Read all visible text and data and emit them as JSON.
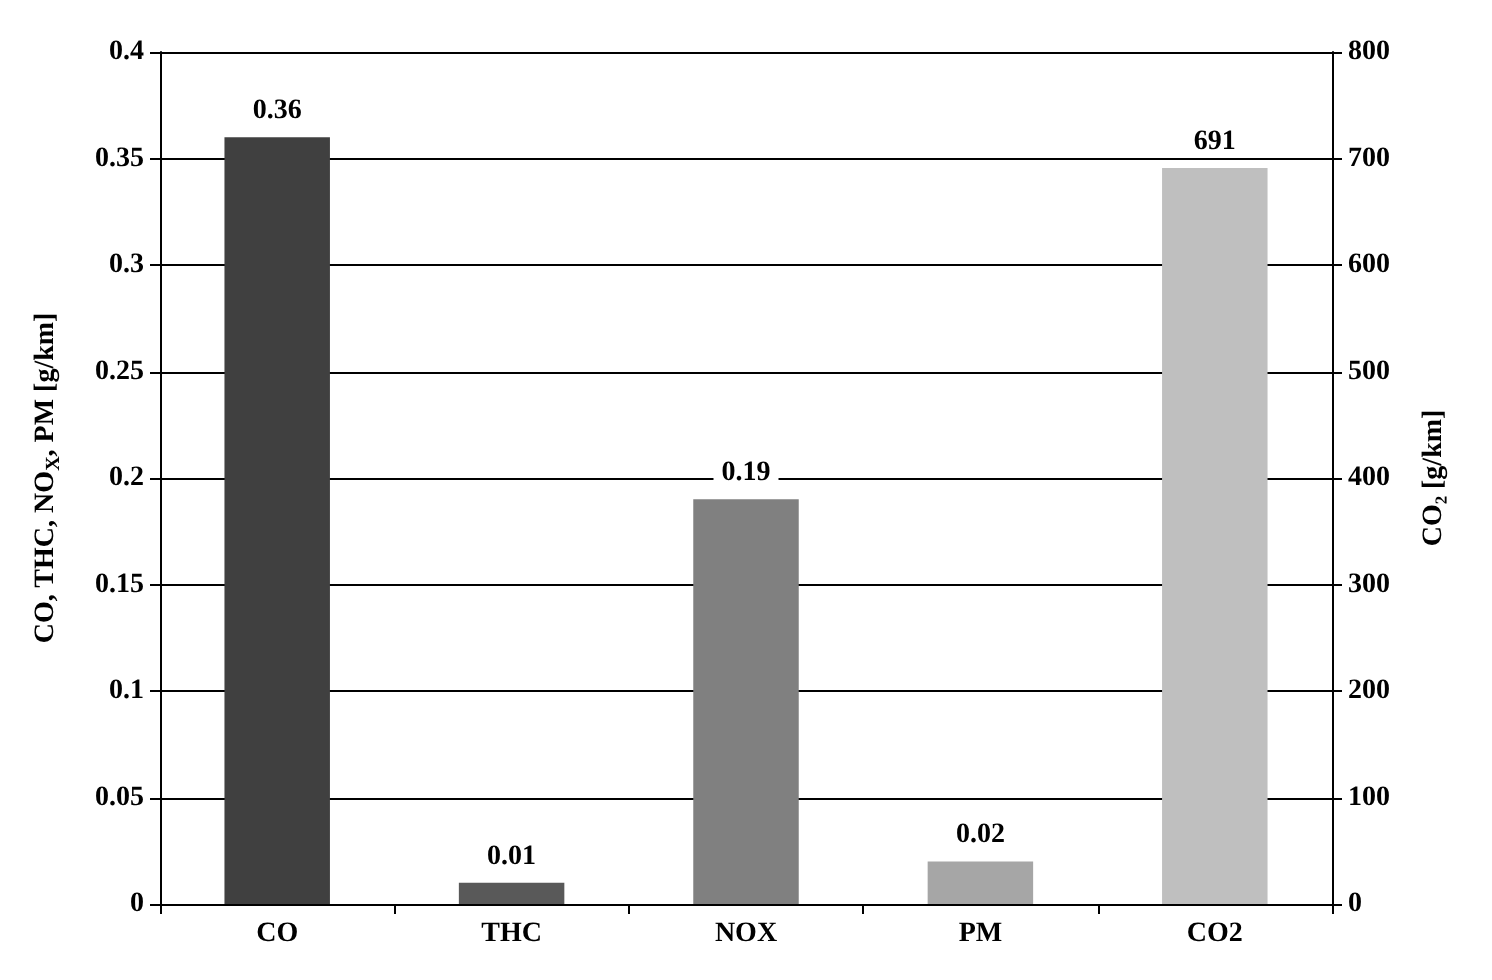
{
  "chart_data": {
    "type": "bar",
    "categories": [
      "CO",
      "THC",
      "NOX",
      "PM",
      "CO2"
    ],
    "ylabel": "CO, THC, NO$_{X}$, PM [g/km]",
    "y2label": "CO₂ [g/km]",
    "series": [
      {
        "values": [
          0.36,
          0.01,
          0.19,
          0.02,
          null
        ],
        "colors": [
          "#404040",
          "#595959",
          "#808080",
          "#a6a6a6",
          "#bfbfbf"
        ]
      },
      {
        "axis": "y2",
        "values": [
          null,
          null,
          null,
          null,
          691
        ],
        "colors": [
          "#404040",
          "#595959",
          "#808080",
          "#a6a6a6",
          "#bfbfbf"
        ]
      }
    ],
    "ylim": [
      0,
      0.4
    ],
    "yticks": [
      0,
      0.05,
      0.1,
      0.15,
      0.2,
      0.25,
      0.3,
      0.35,
      0.4
    ],
    "y2lim": [
      0,
      800
    ],
    "y2ticks": [
      0,
      100,
      200,
      300,
      400,
      500,
      600,
      700,
      800
    ],
    "grid": "y",
    "data_labels": true
  }
}
